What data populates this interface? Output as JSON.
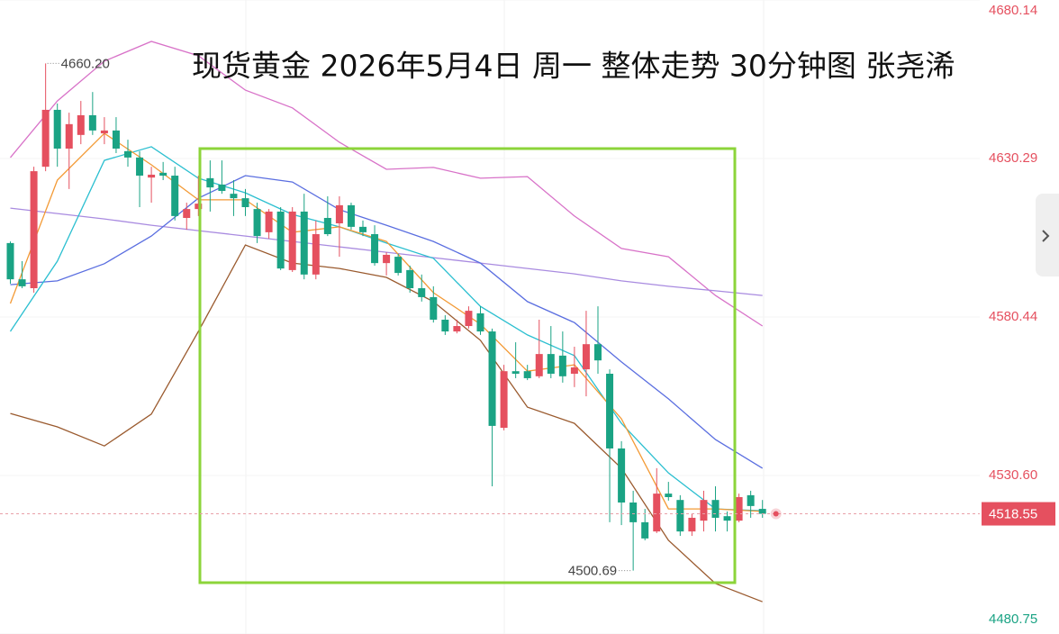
{
  "chart_data": {
    "type": "candlestick",
    "title": "现货黄金 2026年5月4日 周一 整体走势 30分钟图 张尧浠",
    "up_color": "#e5505f",
    "down_color": "#1aa384",
    "ylim": [
      4480.75,
      4680.14
    ],
    "yticks": [
      4680.14,
      4630.29,
      4580.44,
      {
        "value": 4530.6,
        "label": "4530.60"
      },
      4480.75
    ],
    "grid": true,
    "candles": {
      "open": [
        4603.7,
        4592.3,
        4589.5,
        4627.7,
        4645.6,
        4633.4,
        4637.7,
        4643.9,
        4638.2,
        4639.1,
        4632.6,
        4630.6,
        4624.3,
        4625.8,
        4624.9,
        4611.6,
        4614.4,
        4624.1,
        4622.1,
        4619.2,
        4617.8,
        4614.4,
        4607.1,
        4613.6,
        4595.2,
        4613.6,
        4593.8,
        4611.6,
        4609.9,
        4615.6,
        4608.8,
        4606.5,
        4597.4,
        4599.4,
        4595.2,
        4589.5,
        4586.7,
        4579.6,
        4575.9,
        4577.6,
        4581.6,
        4575.9,
        4545.6,
        4563.4,
        4563.4,
        4561.8,
        4568.8,
        4568.3,
        4562.6,
        4564.0,
        4571.9,
        4562.6,
        4539.1,
        4522.1,
        4515.9,
        4513.0,
        4524.9,
        4522.9,
        4513.0,
        4516.4,
        4522.9,
        4517.8,
        4516.4,
        4524.4,
        4520.1
      ],
      "close": [
        4592.3,
        4590.1,
        4626.3,
        4645.6,
        4633.4,
        4641.1,
        4643.9,
        4639.1,
        4639.1,
        4633.4,
        4630.6,
        4624.9,
        4625.2,
        4624.9,
        4612.2,
        4614.4,
        4616.1,
        4621.2,
        4620.1,
        4617.8,
        4615.0,
        4605.9,
        4613.6,
        4595.7,
        4613.6,
        4593.8,
        4606.5,
        4606.5,
        4615.6,
        4608.8,
        4607.1,
        4597.4,
        4600.0,
        4594.3,
        4589.5,
        4586.7,
        4579.6,
        4575.9,
        4577.6,
        4582.4,
        4575.9,
        4546.2,
        4563.4,
        4562.6,
        4561.2,
        4568.8,
        4562.6,
        4561.8,
        4564.6,
        4571.9,
        4566.8,
        4539.1,
        4522.1,
        4515.9,
        4510.8,
        4524.9,
        4523.8,
        4513.0,
        4517.3,
        4522.9,
        4517.3,
        4516.4,
        4523.8,
        4521.0,
        4518.55
      ],
      "high": [
        4604.2,
        4598.0,
        4627.7,
        4660.2,
        4647.6,
        4644.7,
        4648.4,
        4651.2,
        4643.3,
        4643.3,
        4636.2,
        4632.6,
        4627.7,
        4629.2,
        4627.7,
        4616.4,
        4624.9,
        4629.7,
        4629.7,
        4623.5,
        4620.7,
        4616.4,
        4614.4,
        4615.0,
        4615.0,
        4619.2,
        4610.8,
        4618.4,
        4618.4,
        4616.4,
        4610.8,
        4609.3,
        4600.8,
        4600.3,
        4596.6,
        4593.8,
        4590.1,
        4581.0,
        4579.6,
        4583.8,
        4583.8,
        4576.8,
        4565.4,
        4572.5,
        4565.4,
        4579.6,
        4577.6,
        4575.9,
        4571.1,
        4582.4,
        4583.8,
        4564.0,
        4541.4,
        4525.8,
        4520.1,
        4532.9,
        4528.6,
        4524.4,
        4518.7,
        4525.8,
        4527.2,
        4519.3,
        4524.9,
        4525.8,
        4522.9
      ],
      "low": [
        4590.9,
        4589.5,
        4588.1,
        4626.3,
        4627.7,
        4620.7,
        4634.8,
        4637.7,
        4634.8,
        4632.0,
        4627.7,
        4615.0,
        4616.4,
        4623.5,
        4610.8,
        4607.9,
        4612.2,
        4613.6,
        4619.2,
        4612.2,
        4612.2,
        4603.7,
        4605.1,
        4595.2,
        4594.6,
        4592.3,
        4592.3,
        4605.9,
        4599.4,
        4607.9,
        4605.9,
        4596.6,
        4593.5,
        4593.5,
        4588.1,
        4585.3,
        4578.7,
        4574.8,
        4575.3,
        4576.8,
        4574.8,
        4527.2,
        4544.8,
        4561.2,
        4560.6,
        4561.2,
        4561.2,
        4559.8,
        4558.4,
        4555.5,
        4562.6,
        4515.9,
        4515.0,
        4500.69,
        4510.2,
        4512.5,
        4522.7,
        4511.6,
        4511.6,
        4513.0,
        4513.0,
        4513.0,
        4515.9,
        4517.3,
        4517.3
      ]
    },
    "overlays": [
      {
        "color": "#d872c8",
        "x": [
          0,
          4,
          8,
          12,
          16,
          20,
          24,
          28,
          32,
          36,
          40,
          44,
          48,
          52,
          56,
          60,
          64
        ],
        "values": [
          4630.6,
          4648.4,
          4660.9,
          4667.1,
          4662.6,
          4651.8,
          4646.2,
          4635.4,
          4626.9,
          4627.5,
          4624.1,
          4624.6,
          4612.2,
          4602.0,
          4599.4,
          4587.2,
          4577.6
        ]
      },
      {
        "color": "#9a5a2e",
        "x": [
          0,
          4,
          8,
          12,
          16,
          20,
          24,
          28,
          32,
          36,
          40,
          44,
          48,
          52,
          56,
          60,
          64
        ],
        "values": [
          4550.1,
          4545.9,
          4539.9,
          4549.9,
          4575.9,
          4603.1,
          4597.4,
          4595.7,
          4592.9,
          4585.3,
          4573.1,
          4552.1,
          4547.0,
          4532.9,
          4510.2,
          4496.6,
          4490.9
        ]
      },
      {
        "color": "#a98be0",
        "x": [
          0,
          4,
          8,
          12,
          16,
          20,
          24,
          28,
          32,
          36,
          40,
          44,
          48,
          52,
          56,
          60,
          64
        ],
        "values": [
          4614.7,
          4613.0,
          4611.3,
          4609.3,
          4607.6,
          4605.9,
          4604.2,
          4602.5,
          4600.8,
          4599.1,
          4597.4,
          4595.7,
          4594.0,
          4591.8,
          4590.1,
          4588.7,
          4587.2
        ]
      },
      {
        "color": "#5a6ee0",
        "x": [
          0,
          4,
          8,
          12,
          16,
          20,
          24,
          28,
          32,
          36,
          40,
          44,
          48,
          52,
          56,
          60,
          64
        ],
        "values": [
          4590.6,
          4591.8,
          4597.2,
          4605.9,
          4617.8,
          4624.9,
          4622.9,
          4614.2,
          4609.3,
          4604.2,
          4597.4,
          4585.3,
          4578.7,
          4566.3,
          4554.7,
          4541.9,
          4532.9
        ]
      },
      {
        "color": "#2bbfd0",
        "x": [
          0,
          4,
          8,
          12,
          16,
          20,
          24,
          28,
          32,
          36,
          40,
          44,
          48,
          52,
          56,
          60,
          64
        ],
        "values": [
          4575.9,
          4598.0,
          4629.7,
          4634.0,
          4624.1,
          4619.5,
          4612.7,
          4608.8,
          4603.7,
          4598.9,
          4583.8,
          4574.8,
          4568.3,
          4547.0,
          4531.4,
          4520.1,
          4519.5
        ]
      },
      {
        "color": "#f39a35",
        "x": [
          0,
          4,
          8,
          12,
          16,
          20,
          24,
          28,
          32,
          36,
          40,
          44,
          48,
          52,
          56,
          60,
          64
        ],
        "values": [
          4584.7,
          4623.5,
          4638.2,
          4628.3,
          4617.3,
          4617.3,
          4607.1,
          4608.8,
          4604.2,
          4588.1,
          4578.2,
          4563.4,
          4565.4,
          4548.4,
          4520.1,
          4520.1,
          4519.3
        ]
      }
    ],
    "annotations": [
      {
        "value": 4660.2,
        "label": "4660.20"
      },
      {
        "value": 4500.69,
        "label": "4500.69"
      }
    ],
    "current_price": {
      "value": 4518.55,
      "label": "4518.55"
    }
  }
}
